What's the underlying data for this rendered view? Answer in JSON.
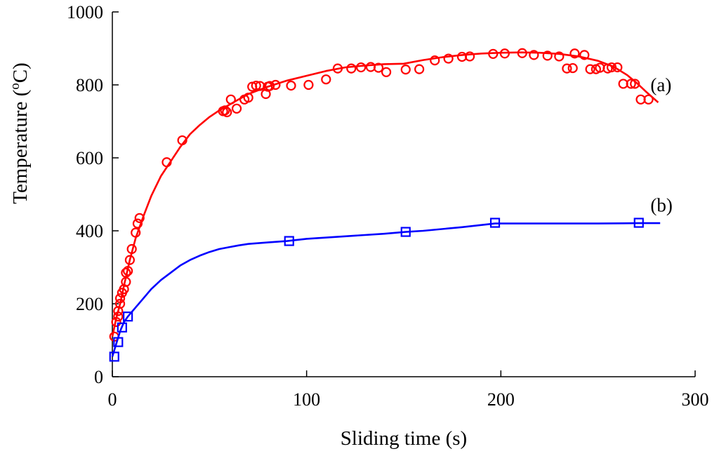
{
  "chart_data": {
    "type": "line",
    "title": "",
    "xlabel": "Sliding time (s)",
    "ylabel_main": "Temperature (",
    "ylabel_sup": "o",
    "ylabel_tail": "C)",
    "xlim": [
      0,
      300
    ],
    "ylim": [
      0,
      1000
    ],
    "xticks": [
      0,
      100,
      200,
      300
    ],
    "yticks": [
      0,
      200,
      400,
      600,
      800,
      1000
    ],
    "grid": false,
    "series": [
      {
        "name": "(a)",
        "color": "#ff0000",
        "marker": "circle",
        "points": [
          [
            1,
            110
          ],
          [
            2,
            150
          ],
          [
            3,
            165
          ],
          [
            3,
            180
          ],
          [
            4,
            200
          ],
          [
            4,
            215
          ],
          [
            5,
            230
          ],
          [
            6,
            240
          ],
          [
            7,
            260
          ],
          [
            7,
            285
          ],
          [
            8,
            290
          ],
          [
            9,
            320
          ],
          [
            10,
            350
          ],
          [
            12,
            395
          ],
          [
            13,
            420
          ],
          [
            14,
            435
          ],
          [
            28,
            588
          ],
          [
            36,
            648
          ],
          [
            57,
            728
          ],
          [
            58,
            730
          ],
          [
            59,
            725
          ],
          [
            61,
            760
          ],
          [
            64,
            735
          ],
          [
            68,
            760
          ],
          [
            70,
            765
          ],
          [
            72,
            795
          ],
          [
            74,
            798
          ],
          [
            76,
            797
          ],
          [
            79,
            775
          ],
          [
            80,
            795
          ],
          [
            81,
            797
          ],
          [
            84,
            800
          ],
          [
            92,
            798
          ],
          [
            101,
            800
          ],
          [
            110,
            815
          ],
          [
            116,
            845
          ],
          [
            123,
            845
          ],
          [
            128,
            848
          ],
          [
            133,
            849
          ],
          [
            137,
            847
          ],
          [
            141,
            835
          ],
          [
            151,
            842
          ],
          [
            158,
            843
          ],
          [
            166,
            867
          ],
          [
            173,
            872
          ],
          [
            180,
            877
          ],
          [
            184,
            878
          ],
          [
            196,
            885
          ],
          [
            202,
            886
          ],
          [
            211,
            887
          ],
          [
            217,
            882
          ],
          [
            224,
            880
          ],
          [
            230,
            878
          ],
          [
            234,
            845
          ],
          [
            237,
            846
          ],
          [
            238,
            886
          ],
          [
            243,
            882
          ],
          [
            246,
            843
          ],
          [
            249,
            843
          ],
          [
            251,
            847
          ],
          [
            255,
            845
          ],
          [
            257,
            848
          ],
          [
            260,
            848
          ],
          [
            263,
            803
          ],
          [
            267,
            803
          ],
          [
            269,
            803
          ],
          [
            272,
            760
          ],
          [
            276,
            760
          ]
        ],
        "curve": [
          [
            0,
            110
          ],
          [
            2,
            160
          ],
          [
            4,
            200
          ],
          [
            6,
            250
          ],
          [
            9,
            320
          ],
          [
            12,
            380
          ],
          [
            16,
            440
          ],
          [
            20,
            495
          ],
          [
            25,
            550
          ],
          [
            30,
            590
          ],
          [
            35,
            630
          ],
          [
            40,
            665
          ],
          [
            45,
            690
          ],
          [
            50,
            712
          ],
          [
            55,
            730
          ],
          [
            60,
            745
          ],
          [
            65,
            760
          ],
          [
            70,
            775
          ],
          [
            75,
            785
          ],
          [
            80,
            795
          ],
          [
            90,
            812
          ],
          [
            100,
            825
          ],
          [
            110,
            838
          ],
          [
            120,
            848
          ],
          [
            130,
            853
          ],
          [
            140,
            857
          ],
          [
            150,
            858
          ],
          [
            160,
            868
          ],
          [
            170,
            876
          ],
          [
            180,
            882
          ],
          [
            190,
            886
          ],
          [
            200,
            888
          ],
          [
            210,
            889
          ],
          [
            220,
            888
          ],
          [
            230,
            885
          ],
          [
            240,
            878
          ],
          [
            250,
            866
          ],
          [
            258,
            850
          ],
          [
            265,
            827
          ],
          [
            270,
            805
          ],
          [
            275,
            780
          ],
          [
            281,
            752
          ]
        ]
      },
      {
        "name": "(b)",
        "color": "#0000ff",
        "marker": "square",
        "points": [
          [
            1,
            55
          ],
          [
            3,
            95
          ],
          [
            5,
            135
          ],
          [
            8,
            165
          ],
          [
            91,
            372
          ],
          [
            151,
            397
          ],
          [
            197,
            422
          ],
          [
            271,
            422
          ]
        ],
        "curve": [
          [
            0,
            55
          ],
          [
            2,
            90
          ],
          [
            4,
            125
          ],
          [
            6,
            150
          ],
          [
            8,
            165
          ],
          [
            12,
            190
          ],
          [
            16,
            215
          ],
          [
            20,
            240
          ],
          [
            25,
            265
          ],
          [
            30,
            285
          ],
          [
            35,
            305
          ],
          [
            40,
            320
          ],
          [
            45,
            332
          ],
          [
            50,
            342
          ],
          [
            55,
            350
          ],
          [
            60,
            355
          ],
          [
            65,
            360
          ],
          [
            70,
            364
          ],
          [
            80,
            368
          ],
          [
            90,
            372
          ],
          [
            100,
            378
          ],
          [
            120,
            385
          ],
          [
            140,
            392
          ],
          [
            151,
            397
          ],
          [
            160,
            400
          ],
          [
            180,
            410
          ],
          [
            197,
            420
          ],
          [
            220,
            420
          ],
          [
            250,
            420
          ],
          [
            271,
            421
          ],
          [
            282,
            421
          ]
        ]
      }
    ],
    "annotations": [
      {
        "text": "(a)",
        "x": 277,
        "y": 800
      },
      {
        "text": "(b)",
        "x": 277,
        "y": 470
      }
    ]
  }
}
